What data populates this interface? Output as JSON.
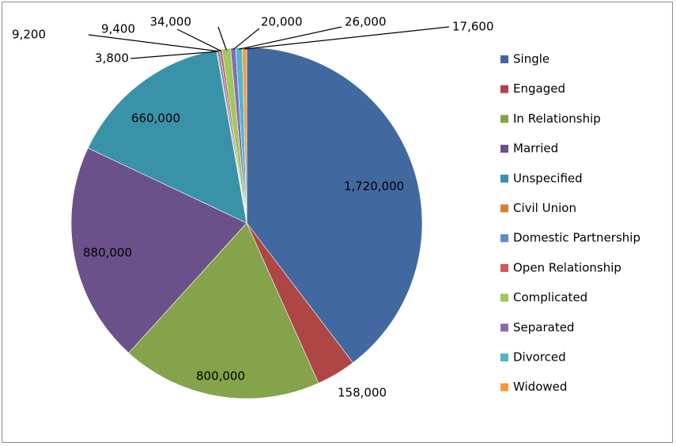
{
  "chart_data": {
    "type": "pie",
    "title": "",
    "legend_position": "right",
    "series": [
      {
        "name": "",
        "slices": [
          {
            "label": "Single",
            "value": 1720000,
            "display": "1,720,000",
            "color": "#4169a0"
          },
          {
            "label": "Engaged",
            "value": 158000,
            "display": "158,000",
            "color": "#ad4644"
          },
          {
            "label": "In Relationship",
            "value": 800000,
            "display": "800,000",
            "color": "#84a34a"
          },
          {
            "label": "Married",
            "value": 880000,
            "display": "880,000",
            "color": "#6a5189"
          },
          {
            "label": "Unspecified",
            "value": 660000,
            "display": "660,000",
            "color": "#3a92a9"
          },
          {
            "label": "Civil Union",
            "value": 3800,
            "display": "3,800",
            "color": "#d7802f"
          },
          {
            "label": "Domestic Partnership",
            "value": 9200,
            "display": "9,200",
            "color": "#5b8cc9"
          },
          {
            "label": "Open Relationship",
            "value": 9400,
            "display": "9,400",
            "color": "#cf5a57"
          },
          {
            "label": "Complicated",
            "value": 34000,
            "display": "34,000",
            "color": "#9ec95e"
          },
          {
            "label": "Separated",
            "value": 20000,
            "display": "20,000",
            "color": "#8a6bb3"
          },
          {
            "label": "Divorced",
            "value": 26000,
            "display": "26,000",
            "color": "#4fb6d0"
          },
          {
            "label": "Widowed",
            "value": 17600,
            "display": "17,600",
            "color": "#f59b3a"
          }
        ]
      }
    ]
  }
}
